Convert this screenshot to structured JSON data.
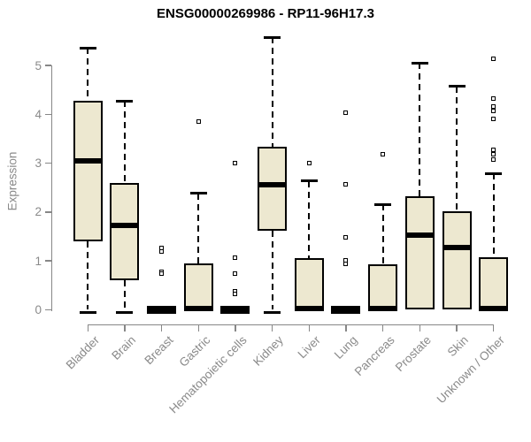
{
  "chart_data": {
    "type": "boxplot",
    "title": "ENSG00000269986 - RP11-96H17.3",
    "xlabel": "",
    "ylabel": "Expression",
    "ylim": [
      0,
      5.6
    ],
    "yticks": [
      0,
      1,
      2,
      3,
      4,
      5
    ],
    "grid": false,
    "legend": false,
    "colors": {
      "box_fill": "#EDE8D0",
      "box_border": "#000000",
      "median": "#000000",
      "axis": "#878787",
      "axis_text": "#8a8a8a",
      "title_text": "#000000"
    },
    "categories": [
      "Bladder",
      "Brain",
      "Breast",
      "Gastric",
      "Hematopoietic cells",
      "Kidney",
      "Liver",
      "Lung",
      "Pancreas",
      "Prostate",
      "Skin",
      "Unknown / Other"
    ],
    "series": [
      {
        "label": "Bladder",
        "low": 0,
        "q1": 1.4,
        "median": 3.04,
        "q3": 4.27,
        "high": 5.36,
        "outliers": []
      },
      {
        "label": "Brain",
        "low": 0,
        "q1": 0.6,
        "median": 1.72,
        "q3": 2.6,
        "high": 4.27,
        "outliers": []
      },
      {
        "label": "Breast",
        "low": 0,
        "q1": 0.0,
        "median": 0.02,
        "q3": 0.0,
        "high": 0.0,
        "outliers": [
          1.27,
          1.19,
          0.78,
          0.74
        ]
      },
      {
        "label": "Gastric",
        "low": 0,
        "q1": 0.0,
        "median": 0.03,
        "q3": 0.95,
        "high": 2.38,
        "outliers": [
          3.85
        ]
      },
      {
        "label": "Hematopoietic cells",
        "low": 0,
        "q1": 0.0,
        "median": 0.02,
        "q3": 0.0,
        "high": 0.0,
        "outliers": [
          3.0,
          1.06,
          0.75,
          0.38,
          0.33
        ]
      },
      {
        "label": "Kidney",
        "low": 0,
        "q1": 1.62,
        "median": 2.56,
        "q3": 3.33,
        "high": 5.57,
        "outliers": []
      },
      {
        "label": "Liver",
        "low": 0,
        "q1": 0.0,
        "median": 0.03,
        "q3": 1.05,
        "high": 2.64,
        "outliers": [
          3.0
        ]
      },
      {
        "label": "Lung",
        "low": 0,
        "q1": 0.0,
        "median": 0.02,
        "q3": 0.0,
        "high": 0.0,
        "outliers": [
          4.03,
          2.56,
          1.49,
          1.02,
          0.94
        ]
      },
      {
        "label": "Pancreas",
        "low": 0,
        "q1": 0.0,
        "median": 0.03,
        "q3": 0.93,
        "high": 2.16,
        "outliers": [
          3.18
        ]
      },
      {
        "label": "Prostate",
        "low": 0,
        "q1": 0.0,
        "median": 1.52,
        "q3": 2.33,
        "high": 5.05,
        "outliers": []
      },
      {
        "label": "Skin",
        "low": 0,
        "q1": 0.0,
        "median": 1.27,
        "q3": 2.01,
        "high": 4.57,
        "outliers": []
      },
      {
        "label": "Unknown / Other",
        "low": 0,
        "q1": 0.0,
        "median": 0.03,
        "q3": 1.08,
        "high": 2.79,
        "outliers": [
          5.13,
          4.32,
          4.16,
          4.07,
          3.9,
          3.28,
          3.18,
          3.08
        ]
      }
    ]
  }
}
